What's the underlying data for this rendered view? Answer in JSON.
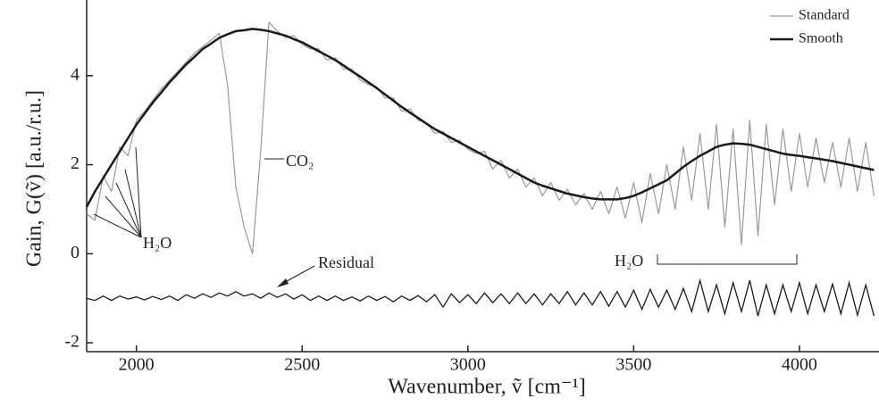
{
  "chart_data": {
    "type": "line",
    "x": [
      1850,
      1875,
      1900,
      1925,
      1950,
      1975,
      2000,
      2025,
      2050,
      2075,
      2100,
      2125,
      2150,
      2175,
      2200,
      2225,
      2250,
      2275,
      2300,
      2325,
      2350,
      2375,
      2400,
      2425,
      2450,
      2475,
      2500,
      2525,
      2550,
      2575,
      2600,
      2625,
      2650,
      2675,
      2700,
      2725,
      2750,
      2775,
      2800,
      2825,
      2850,
      2875,
      2900,
      2925,
      2950,
      2975,
      3000,
      3025,
      3050,
      3075,
      3100,
      3125,
      3150,
      3175,
      3200,
      3225,
      3250,
      3275,
      3300,
      3325,
      3350,
      3375,
      3400,
      3425,
      3450,
      3475,
      3500,
      3525,
      3550,
      3575,
      3600,
      3625,
      3650,
      3675,
      3700,
      3725,
      3750,
      3775,
      3800,
      3825,
      3850,
      3875,
      3900,
      3925,
      3950,
      3975,
      4000,
      4025,
      4050,
      4075,
      4100,
      4125,
      4150,
      4175,
      4200,
      4225
    ],
    "series": [
      {
        "name": "Standard",
        "color": "#999999",
        "values": [
          0.9,
          0.75,
          1.75,
          1.4,
          2.4,
          2.2,
          3.0,
          3.2,
          3.45,
          3.7,
          3.9,
          4.1,
          4.3,
          4.5,
          4.65,
          4.8,
          4.95,
          3.8,
          1.5,
          0.6,
          0.0,
          2.3,
          5.2,
          5.0,
          4.85,
          4.9,
          4.7,
          4.6,
          4.6,
          4.35,
          4.4,
          4.15,
          4.15,
          3.9,
          3.8,
          3.75,
          3.5,
          3.5,
          3.2,
          3.25,
          3.0,
          2.95,
          2.7,
          2.75,
          2.5,
          2.55,
          2.35,
          2.25,
          2.3,
          1.9,
          2.1,
          1.7,
          1.9,
          1.5,
          1.7,
          1.3,
          1.6,
          1.2,
          1.45,
          1.1,
          1.35,
          1.0,
          1.4,
          0.9,
          1.5,
          0.8,
          1.6,
          0.7,
          1.8,
          0.9,
          2.0,
          1.0,
          2.4,
          1.2,
          2.7,
          1.0,
          2.9,
          0.6,
          2.8,
          0.2,
          3.0,
          0.4,
          2.9,
          1.1,
          2.8,
          1.4,
          2.7,
          1.5,
          2.6,
          1.6,
          2.5,
          1.5,
          2.6,
          1.4,
          2.5,
          1.3
        ]
      },
      {
        "name": "Smooth",
        "color": "#1a1a1a",
        "values": [
          1.05,
          1.4,
          1.7,
          2.0,
          2.3,
          2.6,
          2.9,
          3.15,
          3.4,
          3.62,
          3.85,
          4.05,
          4.25,
          4.42,
          4.6,
          4.72,
          4.85,
          4.93,
          5.0,
          5.02,
          5.05,
          5.03,
          5.0,
          4.95,
          4.9,
          4.82,
          4.75,
          4.65,
          4.55,
          4.45,
          4.35,
          4.23,
          4.1,
          3.98,
          3.85,
          3.72,
          3.58,
          3.44,
          3.3,
          3.17,
          3.05,
          2.92,
          2.8,
          2.7,
          2.6,
          2.5,
          2.4,
          2.3,
          2.2,
          2.1,
          2.0,
          1.9,
          1.8,
          1.7,
          1.6,
          1.53,
          1.47,
          1.41,
          1.35,
          1.31,
          1.27,
          1.24,
          1.22,
          1.22,
          1.22,
          1.25,
          1.3,
          1.38,
          1.47,
          1.56,
          1.65,
          1.8,
          1.95,
          2.08,
          2.2,
          2.3,
          2.4,
          2.45,
          2.48,
          2.47,
          2.45,
          2.4,
          2.35,
          2.3,
          2.25,
          2.22,
          2.2,
          2.17,
          2.14,
          2.11,
          2.08,
          2.04,
          2.0,
          1.96,
          1.92,
          1.88
        ]
      }
    ],
    "residual": {
      "name": "Residual",
      "color": "#1a1a1a",
      "values": [
        -1.0,
        -1.05,
        -0.95,
        -1.05,
        -0.95,
        -1.02,
        -0.97,
        -1.04,
        -0.96,
        -1.03,
        -0.95,
        -1.05,
        -0.92,
        -1.0,
        -0.9,
        -0.98,
        -0.88,
        -0.95,
        -0.85,
        -0.95,
        -0.9,
        -1.0,
        -0.88,
        -0.98,
        -0.9,
        -1.02,
        -0.92,
        -1.05,
        -0.95,
        -1.05,
        -0.95,
        -1.05,
        -0.97,
        -1.06,
        -0.95,
        -1.05,
        -0.96,
        -1.08,
        -0.95,
        -1.05,
        -0.94,
        -1.08,
        -0.92,
        -1.2,
        -0.9,
        -1.1,
        -0.92,
        -1.12,
        -0.88,
        -1.1,
        -0.9,
        -1.12,
        -0.88,
        -1.12,
        -0.9,
        -1.15,
        -0.9,
        -1.12,
        -0.85,
        -1.15,
        -0.88,
        -1.15,
        -0.85,
        -1.18,
        -0.85,
        -1.2,
        -0.82,
        -1.25,
        -0.8,
        -1.2,
        -0.82,
        -1.25,
        -0.78,
        -1.3,
        -0.6,
        -1.3,
        -0.7,
        -1.35,
        -0.65,
        -1.3,
        -0.6,
        -1.4,
        -0.7,
        -1.35,
        -0.7,
        -1.3,
        -0.65,
        -1.35,
        -0.7,
        -1.3,
        -0.68,
        -1.35,
        -0.65,
        -1.38,
        -0.7,
        -1.4
      ]
    },
    "annotations": [
      "CO₂",
      "H₂O",
      "H₂O"
    ],
    "xlabel": "Wavenumber, ṽ [cm⁻¹]",
    "ylabel": "Gain, G(ṽ) [a.u./r.u.]",
    "xlim": [
      1850,
      4240
    ],
    "ylim": [
      -2.2,
      5.7
    ],
    "xticks": [
      2000,
      2500,
      3000,
      3500,
      4000
    ],
    "yticks": [
      -2,
      0,
      2,
      4
    ],
    "legend": "upper right",
    "grid": false
  }
}
